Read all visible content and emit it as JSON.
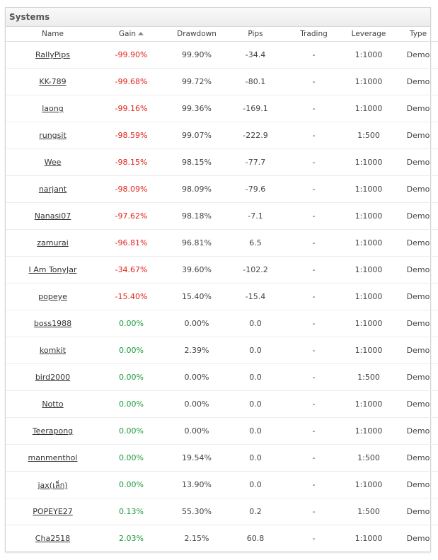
{
  "panel": {
    "title": "Systems"
  },
  "columns": {
    "name": "Name",
    "gain": "Gain",
    "drawdown": "Drawdown",
    "pips": "Pips",
    "trading": "Trading",
    "leverage": "Leverage",
    "type": "Type"
  },
  "colors": {
    "negative": "#e0251c",
    "positive": "#1c9a3a"
  },
  "rows": [
    {
      "name": "RallyPips",
      "gain": "-99.90%",
      "drawdown": "99.90%",
      "pips": "-34.4",
      "trading": "-",
      "leverage": "1:1000",
      "type": "Demo"
    },
    {
      "name": "KK-789",
      "gain": "-99.68%",
      "drawdown": "99.72%",
      "pips": "-80.1",
      "trading": "-",
      "leverage": "1:1000",
      "type": "Demo"
    },
    {
      "name": "laong",
      "gain": "-99.16%",
      "drawdown": "99.36%",
      "pips": "-169.1",
      "trading": "-",
      "leverage": "1:1000",
      "type": "Demo"
    },
    {
      "name": "rungsit",
      "gain": "-98.59%",
      "drawdown": "99.07%",
      "pips": "-222.9",
      "trading": "-",
      "leverage": "1:500",
      "type": "Demo"
    },
    {
      "name": "Wee",
      "gain": "-98.15%",
      "drawdown": "98.15%",
      "pips": "-77.7",
      "trading": "-",
      "leverage": "1:1000",
      "type": "Demo"
    },
    {
      "name": "narjant",
      "gain": "-98.09%",
      "drawdown": "98.09%",
      "pips": "-79.6",
      "trading": "-",
      "leverage": "1:1000",
      "type": "Demo"
    },
    {
      "name": "Nanasi07",
      "gain": "-97.62%",
      "drawdown": "98.18%",
      "pips": "-7.1",
      "trading": "-",
      "leverage": "1:1000",
      "type": "Demo"
    },
    {
      "name": "zamurai",
      "gain": "-96.81%",
      "drawdown": "96.81%",
      "pips": "6.5",
      "trading": "-",
      "leverage": "1:1000",
      "type": "Demo"
    },
    {
      "name": "I Am TonyJar",
      "gain": "-34.67%",
      "drawdown": "39.60%",
      "pips": "-102.2",
      "trading": "-",
      "leverage": "1:1000",
      "type": "Demo"
    },
    {
      "name": "popeye",
      "gain": "-15.40%",
      "drawdown": "15.40%",
      "pips": "-15.4",
      "trading": "-",
      "leverage": "1:1000",
      "type": "Demo"
    },
    {
      "name": "boss1988",
      "gain": "0.00%",
      "drawdown": "0.00%",
      "pips": "0.0",
      "trading": "-",
      "leverage": "1:1000",
      "type": "Demo"
    },
    {
      "name": "komkit",
      "gain": "0.00%",
      "drawdown": "2.39%",
      "pips": "0.0",
      "trading": "-",
      "leverage": "1:1000",
      "type": "Demo"
    },
    {
      "name": "bird2000",
      "gain": "0.00%",
      "drawdown": "0.00%",
      "pips": "0.0",
      "trading": "-",
      "leverage": "1:500",
      "type": "Demo"
    },
    {
      "name": "Notto",
      "gain": "0.00%",
      "drawdown": "0.00%",
      "pips": "0.0",
      "trading": "-",
      "leverage": "1:1000",
      "type": "Demo"
    },
    {
      "name": "Teerapong",
      "gain": "0.00%",
      "drawdown": "0.00%",
      "pips": "0.0",
      "trading": "-",
      "leverage": "1:1000",
      "type": "Demo"
    },
    {
      "name": "manmenthol",
      "gain": "0.00%",
      "drawdown": "19.54%",
      "pips": "0.0",
      "trading": "-",
      "leverage": "1:500",
      "type": "Demo"
    },
    {
      "name": "jax(เล็ก)",
      "gain": "0.00%",
      "drawdown": "13.90%",
      "pips": "0.0",
      "trading": "-",
      "leverage": "1:1000",
      "type": "Demo"
    },
    {
      "name": "POPEYE27",
      "gain": "0.13%",
      "drawdown": "55.30%",
      "pips": "0.2",
      "trading": "-",
      "leverage": "1:500",
      "type": "Demo"
    },
    {
      "name": "Cha2518",
      "gain": "2.03%",
      "drawdown": "2.15%",
      "pips": "60.8",
      "trading": "-",
      "leverage": "1:1000",
      "type": "Demo"
    }
  ]
}
